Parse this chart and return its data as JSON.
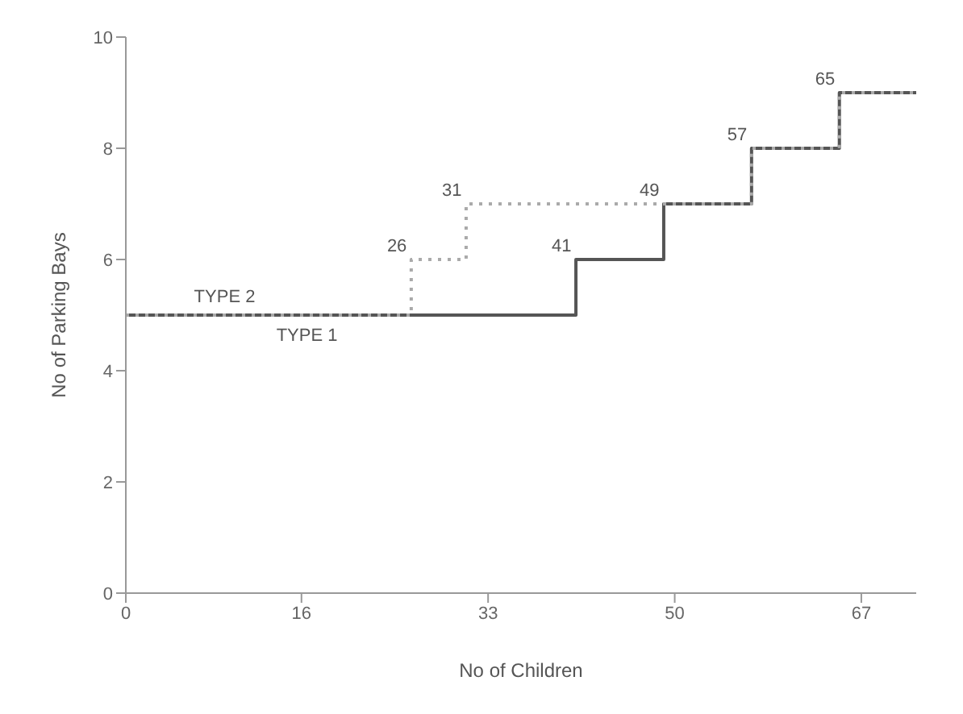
{
  "chart_data": {
    "type": "step",
    "xlabel": "No of  Children",
    "ylabel": "No of  Parking Bays",
    "xlim": [
      0,
      72
    ],
    "xticks": [
      0,
      16,
      33,
      50,
      67
    ],
    "ylim": [
      0,
      10
    ],
    "yticks": [
      0,
      2,
      4,
      6,
      8,
      10
    ],
    "grid": false,
    "legend": false,
    "marker": "none",
    "series": [
      {
        "name": "TYPE 1",
        "color": "#555555",
        "line_style": "solid",
        "x": [
          0,
          41,
          49,
          57,
          65,
          72
        ],
        "values": [
          5,
          6,
          7,
          8,
          9,
          9
        ]
      },
      {
        "name": "TYPE 2",
        "color": "#aaaaaa",
        "line_style": "dotted",
        "x": [
          0,
          26,
          31,
          57,
          65,
          72
        ],
        "values": [
          5,
          6,
          7,
          8,
          9,
          9
        ]
      }
    ],
    "annotations": [
      {
        "text": "26",
        "x": 26,
        "y": 6
      },
      {
        "text": "31",
        "x": 31,
        "y": 7
      },
      {
        "text": "41",
        "x": 41,
        "y": 6
      },
      {
        "text": "49",
        "x": 49,
        "y": 7
      },
      {
        "text": "57",
        "x": 57,
        "y": 8
      },
      {
        "text": "65",
        "x": 65,
        "y": 9
      }
    ]
  }
}
